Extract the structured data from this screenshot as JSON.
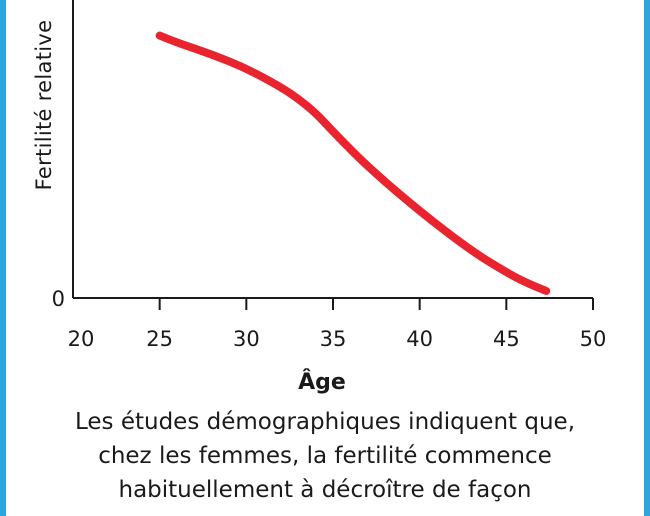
{
  "chart_data": {
    "type": "line",
    "xlabel": "Âge",
    "ylabel": "Fertilité relative",
    "xlim": [
      20,
      50
    ],
    "x_ticks": [
      20,
      25,
      30,
      35,
      40,
      45,
      50
    ],
    "y_ticks": [
      0
    ],
    "series": [
      {
        "x": [
          25,
          26,
          28,
          30,
          32,
          33,
          34,
          35,
          37,
          40,
          43,
          45,
          46,
          47.3
        ],
        "y": [
          1.12,
          1.09,
          1.04,
          0.98,
          0.9,
          0.85,
          0.79,
          0.71,
          0.56,
          0.37,
          0.2,
          0.11,
          0.07,
          0.03
        ],
        "color": "#e8242e"
      }
    ]
  },
  "caption": {
    "lines": [
      "Les études démographiques indiquent que,",
      "chez les femmes, la fertilité commence",
      "habituellement à décroître de façon"
    ]
  }
}
